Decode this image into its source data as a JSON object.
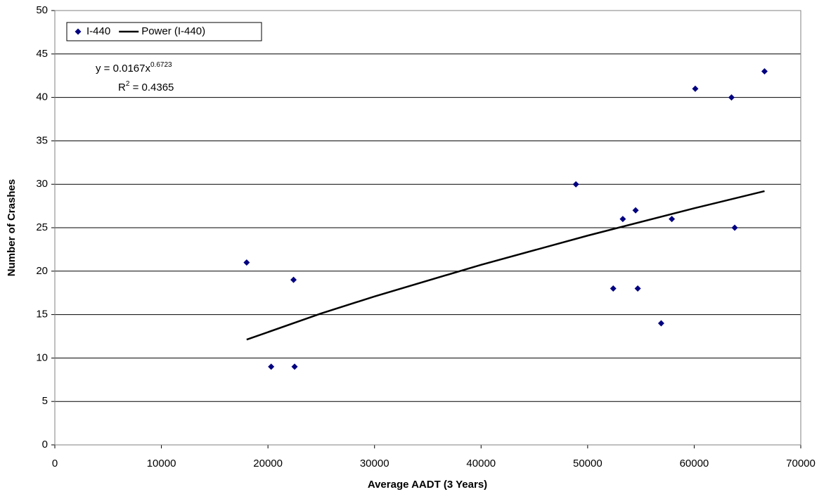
{
  "chart_data": {
    "type": "scatter",
    "xlabel": "Average AADT (3 Years)",
    "ylabel": "Number of Crashes",
    "xlim": [
      0,
      70000
    ],
    "ylim": [
      0,
      50
    ],
    "xticks": [
      0,
      10000,
      20000,
      30000,
      40000,
      50000,
      60000,
      70000
    ],
    "yticks": [
      0,
      5,
      10,
      15,
      20,
      25,
      30,
      35,
      40,
      45,
      50
    ],
    "grid": true,
    "legend": "top-left",
    "series": [
      {
        "name": "I-440",
        "color": "#000080",
        "kind": "scatter",
        "x": [
          18000,
          20300,
          22400,
          22500,
          48900,
          52400,
          53300,
          54500,
          54700,
          56900,
          57900,
          60100,
          63500,
          63800,
          66600
        ],
        "values": [
          21,
          9,
          19,
          9,
          30,
          18,
          26,
          27,
          18,
          14,
          26,
          41,
          40,
          25,
          43
        ]
      },
      {
        "name": "Power (I-440)",
        "color": "#000000",
        "kind": "line",
        "x": [
          18000,
          25000,
          30000,
          40000,
          50000,
          60000,
          66600
        ],
        "values": [
          12.12,
          15.13,
          17.09,
          20.73,
          24.09,
          27.24,
          29.21
        ]
      }
    ],
    "annotations": {
      "equation": [
        "y = 0.0167x",
        "0.6723"
      ],
      "r_squared": [
        "R",
        "2",
        " = 0.4365"
      ]
    }
  }
}
